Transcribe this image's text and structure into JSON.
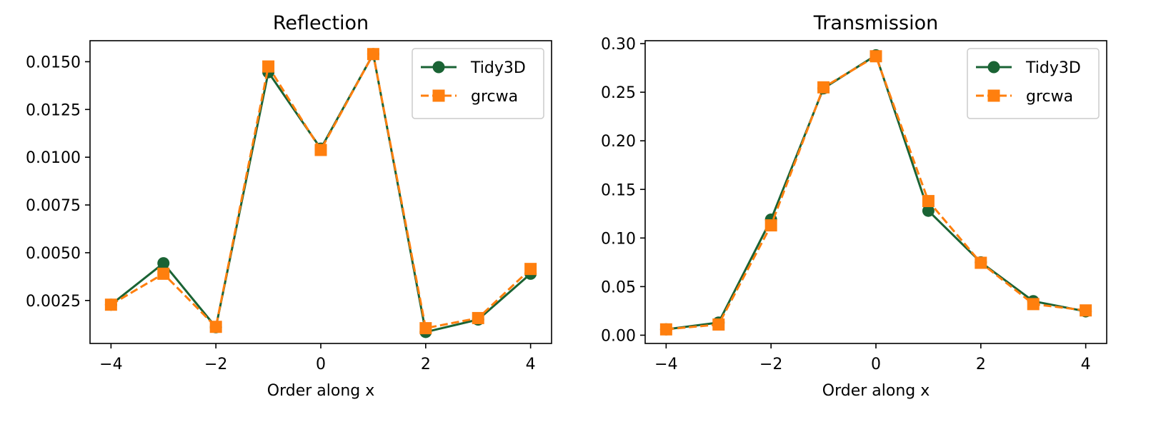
{
  "colors": {
    "tidy3d": "#1a6334",
    "grcwa": "#ff7f0e",
    "axes": "#000000",
    "background": "#ffffff"
  },
  "chart_data": [
    {
      "type": "line",
      "title": "Reflection",
      "xlabel": "Order along x",
      "ylabel": "",
      "xlim": [
        -4.4,
        4.4
      ],
      "ylim": [
        0.00025,
        0.0161
      ],
      "xticks": [
        -4,
        -2,
        0,
        2,
        4
      ],
      "xtick_labels": [
        "−4",
        "−2",
        "0",
        "2",
        "4"
      ],
      "yticks": [
        0.0025,
        0.005,
        0.0075,
        0.01,
        0.0125,
        0.015
      ],
      "ytick_labels": [
        "0.0025",
        "0.0050",
        "0.0075",
        "0.0100",
        "0.0125",
        "0.0150"
      ],
      "grid": false,
      "legend_position": "top-right",
      "x": [
        -4,
        -3,
        -2,
        -1,
        0,
        1,
        2,
        3,
        4
      ],
      "series": [
        {
          "name": "Tidy3D",
          "marker": "circle",
          "linestyle": "solid",
          "values": [
            0.00228,
            0.00445,
            0.0011,
            0.01445,
            0.01045,
            0.0154,
            0.00085,
            0.0015,
            0.0039
          ]
        },
        {
          "name": "grcwa",
          "marker": "square",
          "linestyle": "dashed",
          "values": [
            0.00228,
            0.0039,
            0.00112,
            0.01475,
            0.01038,
            0.0154,
            0.00105,
            0.00158,
            0.00415
          ]
        }
      ]
    },
    {
      "type": "line",
      "title": "Transmission",
      "xlabel": "Order along x",
      "ylabel": "",
      "xlim": [
        -4.4,
        4.4
      ],
      "ylim": [
        -0.0085,
        0.303
      ],
      "xticks": [
        -4,
        -2,
        0,
        2,
        4
      ],
      "xtick_labels": [
        "−4",
        "−2",
        "0",
        "2",
        "4"
      ],
      "yticks": [
        0.0,
        0.05,
        0.1,
        0.15,
        0.2,
        0.25,
        0.3
      ],
      "ytick_labels": [
        "0.00",
        "0.05",
        "0.10",
        "0.15",
        "0.20",
        "0.25",
        "0.30"
      ],
      "grid": false,
      "legend_position": "top-right",
      "x": [
        -4,
        -3,
        -2,
        -1,
        0,
        1,
        2,
        3,
        4
      ],
      "series": [
        {
          "name": "Tidy3D",
          "marker": "circle",
          "linestyle": "solid",
          "values": [
            0.006,
            0.013,
            0.119,
            0.254,
            0.288,
            0.128,
            0.075,
            0.035,
            0.0245
          ]
        },
        {
          "name": "grcwa",
          "marker": "square",
          "linestyle": "dashed",
          "values": [
            0.006,
            0.011,
            0.113,
            0.255,
            0.287,
            0.138,
            0.0745,
            0.032,
            0.0255
          ]
        }
      ]
    }
  ]
}
